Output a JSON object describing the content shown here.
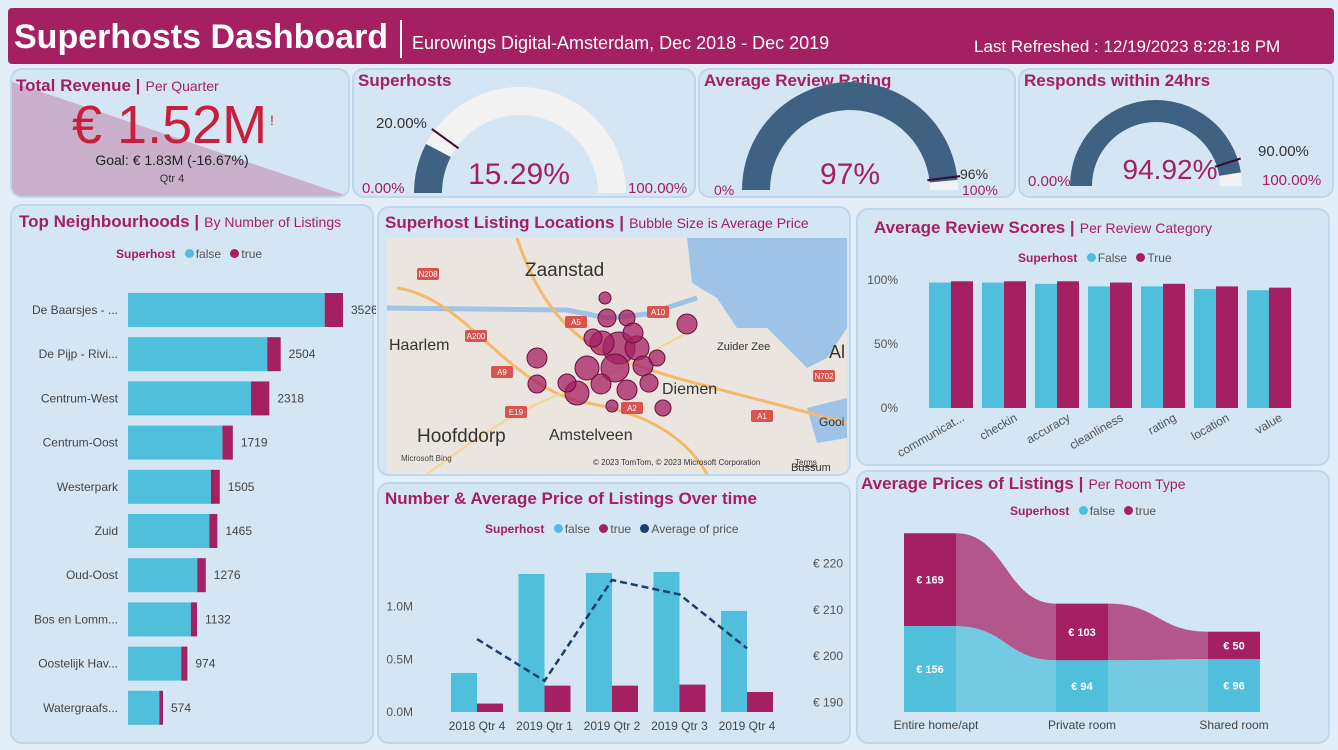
{
  "header": {
    "title": "Superhosts Dashboard",
    "subtitle": "Eurowings Digital-Amsterdam, Dec 2018 - Dec 2019",
    "refreshed": "Last Refreshed : 12/19/2023 8:28:18 PM"
  },
  "revenue": {
    "title": "Total Revenue |",
    "subtitle": "Per Quarter",
    "value": "€ 1.52M",
    "flag": "!",
    "goal": "Goal: € 1.83M (-16.67%)",
    "period": "Qtr 4"
  },
  "superhosts_gauge": {
    "title": "Superhosts",
    "value": "15.29%",
    "min": "0.00%",
    "max": "100.00%",
    "target": "20.00%",
    "fill": 0.1529,
    "target_frac": 0.2
  },
  "rating_gauge": {
    "title": "Average Review Rating",
    "value": "97%",
    "min": "0%",
    "max": "100%",
    "target": "96%",
    "fill": 0.97,
    "target_frac": 0.96
  },
  "response_gauge": {
    "title": "Responds within 24hrs",
    "value": "94.92%",
    "min": "0.00%",
    "max": "100.00%",
    "target": "90.00%",
    "fill": 0.9492,
    "target_frac": 0.9
  },
  "colors": {
    "false": "#4fbfdc",
    "true": "#a51f63",
    "avg": "#1a3e6e",
    "gauge": "#3f6283"
  },
  "neighbourhoods": {
    "title": "Top Neighbourhoods |",
    "subtitle": "By Number of Listings",
    "legend": {
      "label": "Superhost",
      "false": "false",
      "true": "true"
    },
    "chart_data": {
      "type": "bar",
      "orientation": "horizontal",
      "stacked": true,
      "categories": [
        "De Baarsjes - ...",
        "De Pijp - Rivi...",
        "Centrum-West",
        "Centrum-Oost",
        "Westerpark",
        "Zuid",
        "Oud-Oost",
        "Bos en Lomm...",
        "Oostelijk Hav...",
        "Watergraafs..."
      ],
      "totals": [
        "3526",
        "2504",
        "2318",
        "1719",
        "1505",
        "1465",
        "1276",
        "1132",
        "974",
        "574"
      ],
      "series": [
        {
          "name": "false",
          "values": [
            3226,
            2284,
            2018,
            1549,
            1360,
            1335,
            1136,
            1032,
            874,
            514
          ]
        },
        {
          "name": "true",
          "values": [
            300,
            220,
            300,
            170,
            145,
            130,
            140,
            100,
            100,
            60
          ]
        }
      ],
      "xlim": [
        0,
        4000
      ]
    }
  },
  "map": {
    "title": "Superhost Listing Locations |",
    "subtitle": "Bubble Size is Average Price",
    "places": [
      "Zaanstad",
      "Haarlem",
      "Hoofddorp",
      "Amstelveen",
      "Zuider Zee",
      "Al",
      "Diemen",
      "Gooi",
      "Bussum"
    ],
    "roads": [
      "N208",
      "A200",
      "A5",
      "A10",
      "E19",
      "A2",
      "A1",
      "N702",
      "A9"
    ],
    "credit": "© 2023 TomTom, © 2023 Microsoft Corporation",
    "terms": "Terms",
    "brand": "Microsoft Bing"
  },
  "listings_over_time": {
    "title": "Number & Average Price of Listings Over time",
    "legend": {
      "label": "Superhost",
      "false": "false",
      "true": "true",
      "avg": "Average of price"
    },
    "chart_data": {
      "type": "bar",
      "categories": [
        "2018 Qtr 4",
        "2019 Qtr 1",
        "2019 Qtr 2",
        "2019 Qtr 3",
        "2019 Qtr 4"
      ],
      "series": [
        {
          "name": "false",
          "values": [
            370000,
            1310000,
            1320000,
            1330000,
            960000
          ]
        },
        {
          "name": "true",
          "values": [
            80000,
            250000,
            250000,
            260000,
            190000
          ]
        }
      ],
      "line": {
        "name": "Average of price",
        "values": [
          203.7,
          194.7,
          216.4,
          213.3,
          201.7
        ]
      },
      "ylim": [
        0,
        1500000
      ],
      "y2lim": [
        188,
        222
      ],
      "yticks": [
        "0.0M",
        "0.5M",
        "1.0M"
      ],
      "y2ticks": [
        "€ 190",
        "€ 200",
        "€ 210",
        "€ 220"
      ]
    }
  },
  "review_scores": {
    "title": "Average Review Scores |",
    "subtitle": "Per Review Category",
    "legend": {
      "label": "Superhost",
      "false": "False",
      "true": "True"
    },
    "chart_data": {
      "type": "bar",
      "categories": [
        "communicat...",
        "checkin",
        "accuracy",
        "cleanliness",
        "rating",
        "location",
        "value"
      ],
      "series": [
        {
          "name": "False",
          "values": [
            0.98,
            0.98,
            0.97,
            0.95,
            0.95,
            0.93,
            0.92
          ]
        },
        {
          "name": "True",
          "values": [
            0.99,
            0.99,
            0.99,
            0.98,
            0.97,
            0.95,
            0.94
          ]
        }
      ],
      "ylim": [
        0,
        1.0
      ],
      "yticks": [
        "0%",
        "50%",
        "100%"
      ]
    }
  },
  "prices": {
    "title": "Average Prices of Listings |",
    "subtitle": "Per Room Type",
    "legend": {
      "label": "Superhost",
      "false": "false",
      "true": "true"
    },
    "chart_data": {
      "type": "ribbon",
      "categories": [
        "Entire home/apt",
        "Private room",
        "Shared room"
      ],
      "series": [
        {
          "name": "false",
          "values": [
            156,
            94,
            96
          ],
          "labels": [
            "€ 156",
            "€ 94",
            "€ 96"
          ]
        },
        {
          "name": "true",
          "values": [
            169,
            103,
            50
          ],
          "labels": [
            "€ 169",
            "€ 103",
            "€ 50"
          ]
        }
      ]
    }
  }
}
